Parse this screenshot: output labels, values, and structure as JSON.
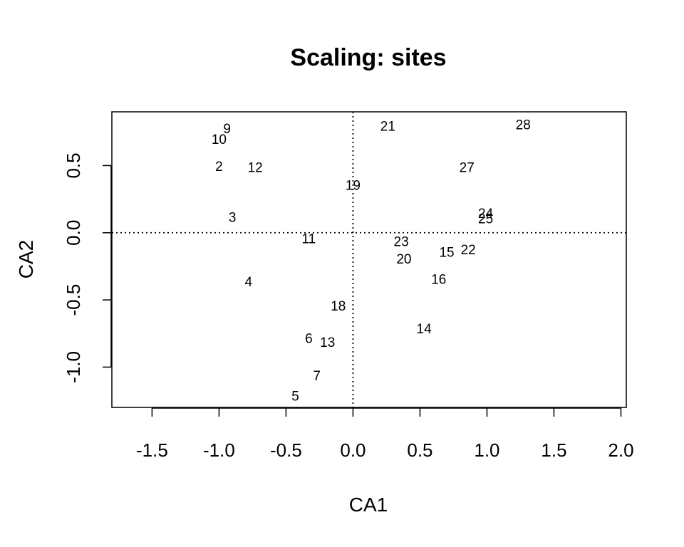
{
  "chart_data": {
    "type": "scatter",
    "title": "Scaling: sites",
    "xlabel": "CA1",
    "ylabel": "CA2",
    "xlim": [
      -1.8,
      2.04
    ],
    "ylim": [
      -1.3,
      0.9
    ],
    "xticks": [
      -1.5,
      -1.0,
      -0.5,
      0.0,
      0.5,
      1.0,
      1.5,
      2.0
    ],
    "xtick_labels": [
      "-1.5",
      "-1.0",
      "-0.5",
      "0.0",
      "0.5",
      "1.0",
      "1.5",
      "2.0"
    ],
    "yticks": [
      -1.0,
      -0.5,
      0.0,
      0.5
    ],
    "ytick_labels": [
      "-1.0",
      "-0.5",
      "0.0",
      "0.5"
    ],
    "reference_lines": {
      "x": 0,
      "y": 0,
      "style": "dotted"
    },
    "grid": false,
    "points": [
      {
        "label": "2",
        "x": -1.0,
        "y": 0.49
      },
      {
        "label": "3",
        "x": -0.9,
        "y": 0.11
      },
      {
        "label": "4",
        "x": -0.78,
        "y": -0.37
      },
      {
        "label": "5",
        "x": -0.43,
        "y": -1.22
      },
      {
        "label": "6",
        "x": -0.33,
        "y": -0.79
      },
      {
        "label": "7",
        "x": -0.27,
        "y": -1.07
      },
      {
        "label": "9",
        "x": -0.94,
        "y": 0.77
      },
      {
        "label": "10",
        "x": -1.0,
        "y": 0.69
      },
      {
        "label": "11",
        "x": -0.33,
        "y": -0.05
      },
      {
        "label": "12",
        "x": -0.73,
        "y": 0.48
      },
      {
        "label": "13",
        "x": -0.19,
        "y": -0.82
      },
      {
        "label": "14",
        "x": 0.53,
        "y": -0.72
      },
      {
        "label": "15",
        "x": 0.7,
        "y": -0.15
      },
      {
        "label": "16",
        "x": 0.64,
        "y": -0.35
      },
      {
        "label": "18",
        "x": -0.11,
        "y": -0.55
      },
      {
        "label": "19",
        "x": 0.0,
        "y": 0.35
      },
      {
        "label": "20",
        "x": 0.38,
        "y": -0.2
      },
      {
        "label": "21",
        "x": 0.26,
        "y": 0.79
      },
      {
        "label": "22",
        "x": 0.86,
        "y": -0.13
      },
      {
        "label": "23",
        "x": 0.36,
        "y": -0.07
      },
      {
        "label": "24",
        "x": 0.99,
        "y": 0.14
      },
      {
        "label": "25",
        "x": 0.99,
        "y": 0.1
      },
      {
        "label": "27",
        "x": 0.85,
        "y": 0.48
      },
      {
        "label": "28",
        "x": 1.27,
        "y": 0.8
      }
    ]
  }
}
